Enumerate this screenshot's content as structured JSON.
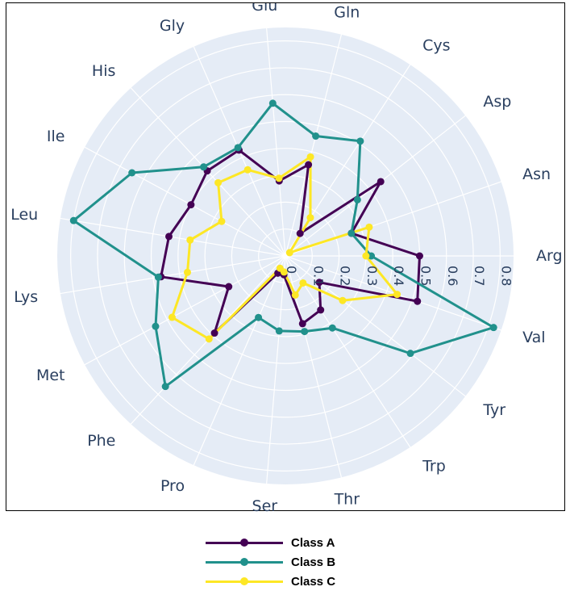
{
  "chart_data": {
    "type": "radar",
    "angular_axis": [
      "Arg",
      "Val",
      "Tyr",
      "Trp",
      "Thr",
      "Ser",
      "Pro",
      "Phe",
      "Met",
      "Lys",
      "Leu",
      "Ile",
      "His",
      "Gly",
      "Glu",
      "Gln",
      "Cys",
      "Asp",
      "Asn"
    ],
    "radial_ticks": [
      "0",
      "0.1",
      "0.2",
      "0.3",
      "0.4",
      "0.5",
      "0.6",
      "0.7",
      "0.8"
    ],
    "radial_range": [
      0,
      0.85
    ],
    "grid": true,
    "legend_position": "bottom",
    "series": [
      {
        "name": "Class A",
        "color": "#440154",
        "values": [
          0.5,
          0.52,
          0.16,
          0.24,
          0.26,
          0.07,
          0.07,
          0.39,
          0.24,
          0.47,
          0.44,
          0.4,
          0.43,
          0.43,
          0.28,
          0.35,
          0.1,
          0.45,
          0.26
        ]
      },
      {
        "name": "Class B",
        "color": "#21918c",
        "values": [
          0.32,
          0.82,
          0.59,
          0.32,
          0.29,
          0.28,
          0.25,
          0.66,
          0.55,
          0.48,
          0.8,
          0.65,
          0.45,
          0.44,
          0.57,
          0.46,
          0.51,
          0.34,
          0.26
        ]
      },
      {
        "name": "Class C",
        "color": "#fde725",
        "values": [
          0.3,
          0.44,
          0.27,
          0.12,
          0.15,
          0.06,
          0.05,
          0.42,
          0.48,
          0.37,
          0.36,
          0.27,
          0.37,
          0.35,
          0.29,
          0.38,
          0.17,
          0.02,
          0.33
        ]
      }
    ]
  }
}
